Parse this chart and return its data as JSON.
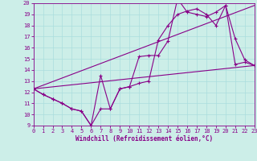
{
  "xlabel": "Windchill (Refroidissement éolien,°C)",
  "xlim": [
    0,
    23
  ],
  "ylim": [
    9,
    20
  ],
  "yticks": [
    9,
    10,
    11,
    12,
    13,
    14,
    15,
    16,
    17,
    18,
    19,
    20
  ],
  "xticks": [
    0,
    1,
    2,
    3,
    4,
    5,
    6,
    7,
    8,
    9,
    10,
    11,
    12,
    13,
    14,
    15,
    16,
    17,
    18,
    19,
    20,
    21,
    22,
    23
  ],
  "background_color": "#cceee8",
  "line_color": "#880088",
  "grid_color": "#aadddd",
  "line1_x": [
    0,
    1,
    2,
    3,
    4,
    5,
    6,
    7,
    8,
    9,
    10,
    11,
    12,
    13,
    14,
    15,
    16,
    17,
    18,
    19,
    20,
    21,
    22,
    23
  ],
  "line1_y": [
    12.3,
    11.8,
    11.4,
    11.0,
    10.5,
    10.3,
    9.0,
    10.5,
    10.5,
    12.3,
    12.5,
    12.8,
    13.0,
    16.7,
    18.0,
    19.0,
    19.3,
    19.5,
    19.0,
    18.0,
    19.8,
    16.8,
    14.9,
    14.4
  ],
  "line2_x": [
    0,
    1,
    2,
    3,
    4,
    5,
    6,
    7,
    8,
    9,
    10,
    11,
    12,
    13,
    14,
    15,
    16,
    17,
    18,
    19,
    20,
    21,
    22,
    23
  ],
  "line2_y": [
    12.3,
    11.8,
    11.4,
    11.0,
    10.5,
    10.3,
    9.0,
    13.5,
    10.5,
    12.3,
    12.5,
    15.2,
    15.3,
    15.3,
    16.6,
    20.4,
    19.2,
    19.0,
    18.8,
    19.2,
    19.8,
    14.5,
    14.7,
    14.4
  ],
  "line3_x": [
    0,
    23
  ],
  "line3_y": [
    12.3,
    14.4
  ],
  "line4_x": [
    0,
    23
  ],
  "line4_y": [
    12.3,
    19.8
  ],
  "tick_fontsize": 5.0,
  "xlabel_fontsize": 5.5
}
